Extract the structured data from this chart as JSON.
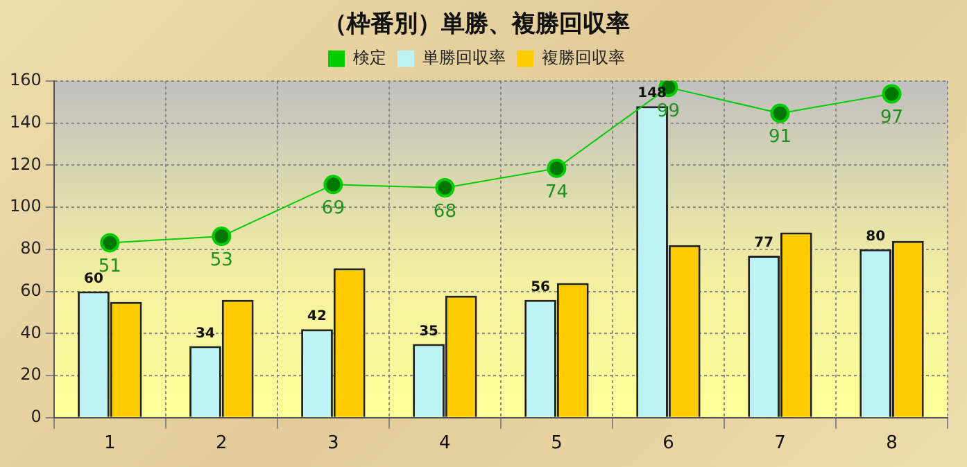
{
  "chart_data": {
    "type": "bar",
    "title": "（枠番別）単勝、複勝回収率",
    "categories": [
      "1",
      "2",
      "3",
      "4",
      "5",
      "6",
      "7",
      "8"
    ],
    "series": [
      {
        "name": "検定",
        "type": "line",
        "axis": "y2",
        "color": "#00cc00",
        "values": [
          51,
          53,
          69,
          68,
          74,
          99,
          91,
          97
        ],
        "value_labels": [
          "51",
          "53",
          "69",
          "68",
          "74",
          "99",
          "91",
          "97"
        ]
      },
      {
        "name": "単勝回収率",
        "color": "#bdf3f5",
        "values": [
          60,
          34,
          42,
          35,
          56,
          148,
          77,
          80
        ],
        "value_labels": [
          "60",
          "34",
          "42",
          "35",
          "56",
          "148",
          "77",
          "80"
        ]
      },
      {
        "name": "複勝回収率",
        "color": "#ffcc00",
        "values": [
          55,
          56,
          71,
          58,
          64,
          82,
          88,
          84
        ]
      }
    ],
    "ylim": [
      0,
      160
    ],
    "yticks": [
      0,
      20,
      40,
      60,
      80,
      100,
      120,
      140,
      160
    ],
    "y2lim": [
      -3,
      101
    ],
    "grid": true,
    "legend": "top",
    "marker": "circle",
    "line_style": "solid"
  }
}
